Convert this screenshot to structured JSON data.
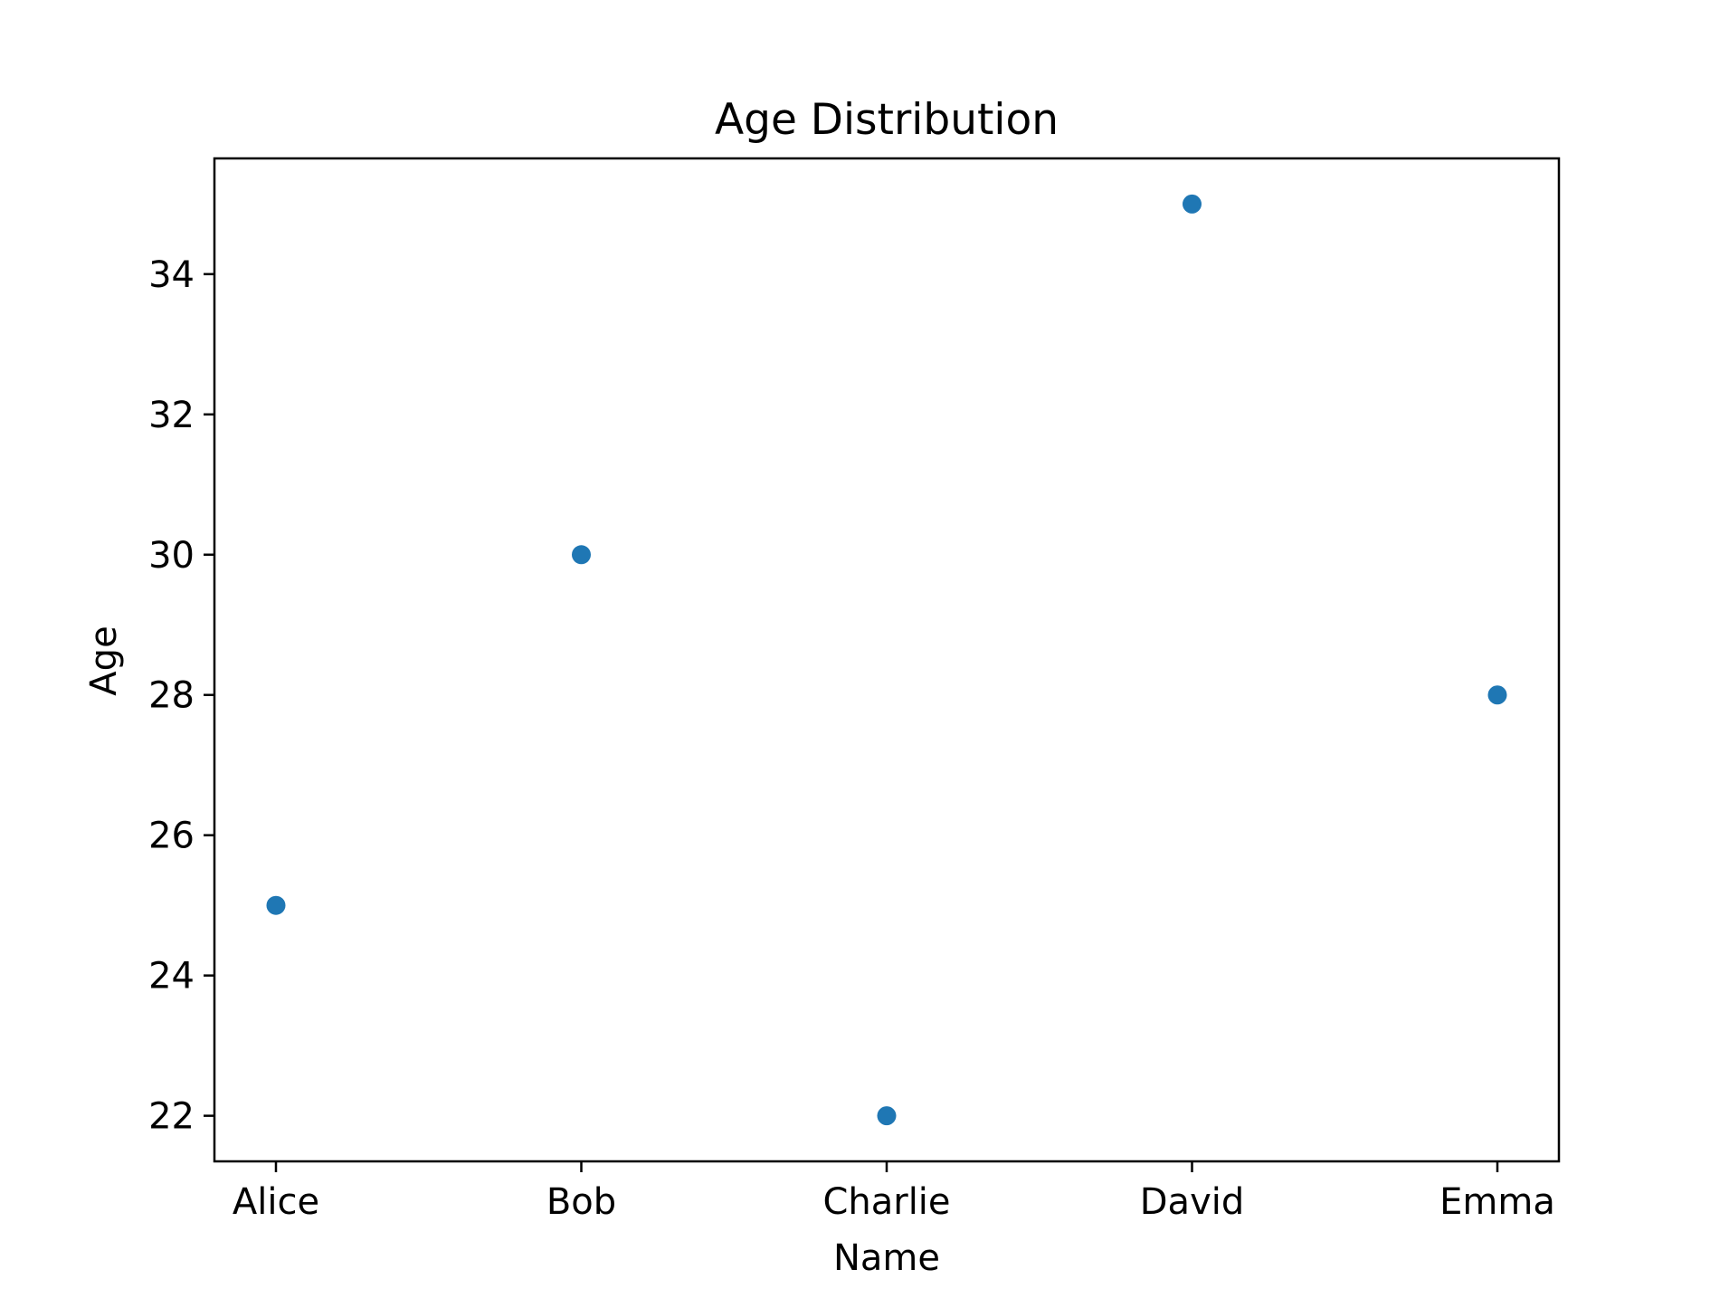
{
  "chart_data": {
    "type": "scatter",
    "title": "Age Distribution",
    "xlabel": "Name",
    "ylabel": "Age",
    "categories": [
      "Alice",
      "Bob",
      "Charlie",
      "David",
      "Emma"
    ],
    "series": [
      {
        "values": [
          25,
          30,
          22,
          35,
          28
        ]
      }
    ],
    "ylim": [
      21.35,
      35.65
    ],
    "yticks": [
      22,
      24,
      26,
      28,
      30,
      32,
      34
    ],
    "grid": false,
    "legend": "none",
    "colors": {
      "marker": "#1f77b4",
      "axes": "#000000",
      "background": "#ffffff"
    }
  }
}
